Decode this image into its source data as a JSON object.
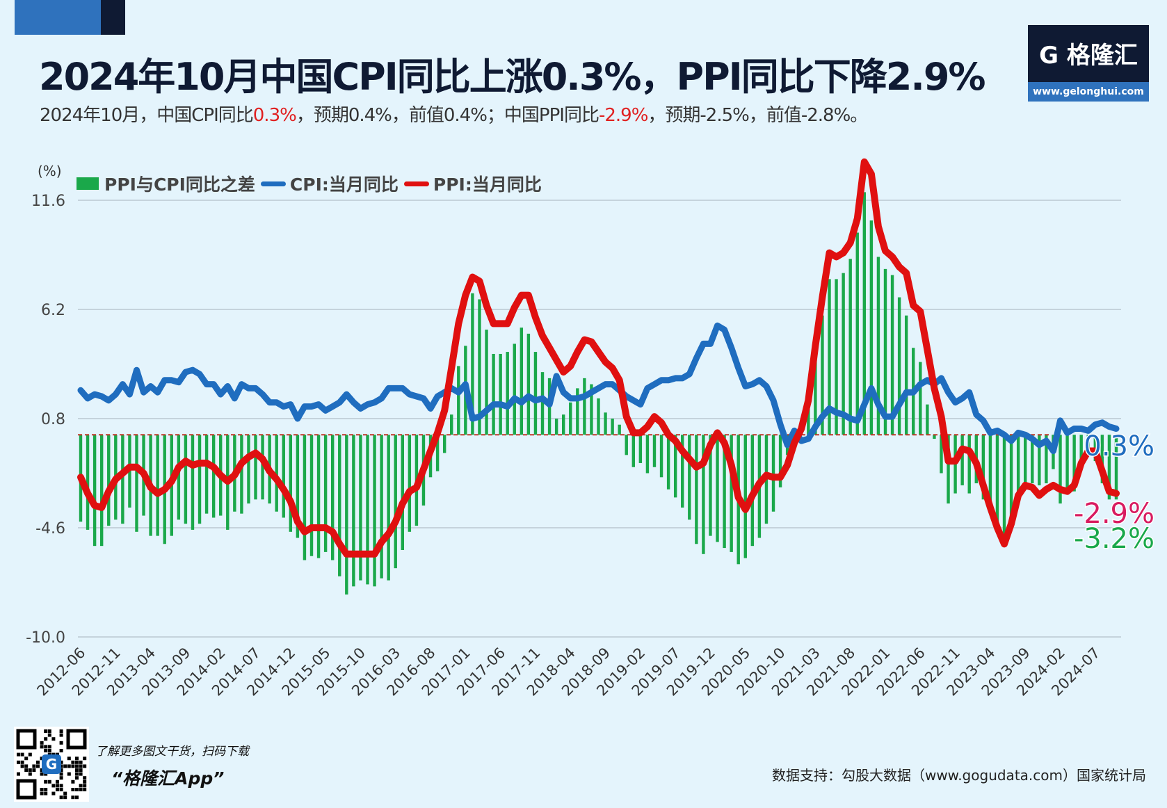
{
  "header": {
    "title": "2024年10月中国CPI同比上涨0.3%，PPI同比下降2.9%",
    "subtitle_parts": [
      "2024年10月，中国CPI同比",
      "0.3%",
      "，预期0.4%，前值0.4%；中国PPI同比",
      "-2.9%",
      "，预期-2.5%，前值-2.8%。"
    ]
  },
  "logo": {
    "brand": "格隆汇",
    "url": "www.gelonghui.com"
  },
  "footer": {
    "promo_line": "了解更多图文干货，扫码下载",
    "app_name": "“格隆汇App”",
    "source": "数据支持：勾股大数据（www.gogudata.com）国家统计局"
  },
  "colors": {
    "diff": "#1aa84a",
    "cpi": "#1f6dbf",
    "ppi": "#e01010",
    "ppi_label": "#d81b60",
    "background": "#e4f4fc"
  },
  "chart_data": {
    "type": "bar+line",
    "unit_label": "(%)",
    "ylim": [
      -10.0,
      11.6
    ],
    "yticks": [
      11.6,
      6.2,
      0.8,
      -4.6,
      -10.0
    ],
    "grid": true,
    "legend_position": "top-left",
    "start_month": "2012-06",
    "xtick_labels": [
      "2012-06",
      "2012-11",
      "2013-04",
      "2013-09",
      "2014-02",
      "2014-07",
      "2014-12",
      "2015-05",
      "2015-10",
      "2016-03",
      "2016-08",
      "2017-01",
      "2017-06",
      "2017-11",
      "2018-04",
      "2018-09",
      "2019-02",
      "2019-07",
      "2019-12",
      "2020-05",
      "2020-10",
      "2021-03",
      "2021-08",
      "2022-01",
      "2022-06",
      "2022-11",
      "2023-04",
      "2023-09",
      "2024-02",
      "2024-07"
    ],
    "series": [
      {
        "name": "PPI与CPI同比之差",
        "type": "bar",
        "derived": "PPI - CPI"
      },
      {
        "name": "CPI:当月同比",
        "type": "line",
        "values": [
          2.2,
          1.8,
          2.0,
          1.9,
          1.7,
          2.0,
          2.5,
          2.0,
          3.2,
          2.1,
          2.4,
          2.1,
          2.7,
          2.7,
          2.6,
          3.1,
          3.2,
          3.0,
          2.5,
          2.5,
          2.0,
          2.4,
          1.8,
          2.5,
          2.3,
          2.3,
          2.0,
          1.6,
          1.6,
          1.4,
          1.5,
          0.8,
          1.4,
          1.4,
          1.5,
          1.2,
          1.4,
          1.6,
          2.0,
          1.6,
          1.3,
          1.5,
          1.6,
          1.8,
          2.3,
          2.3,
          2.3,
          2.0,
          1.9,
          1.8,
          1.3,
          1.9,
          2.1,
          2.3,
          2.1,
          2.5,
          0.8,
          0.9,
          1.2,
          1.5,
          1.5,
          1.4,
          1.8,
          1.6,
          1.9,
          1.7,
          1.8,
          1.5,
          2.9,
          2.1,
          1.8,
          1.8,
          1.9,
          2.1,
          2.3,
          2.5,
          2.5,
          2.2,
          1.9,
          1.7,
          1.5,
          2.3,
          2.5,
          2.7,
          2.7,
          2.8,
          2.8,
          3.0,
          3.8,
          4.5,
          4.5,
          5.4,
          5.2,
          4.3,
          3.3,
          2.4,
          2.5,
          2.7,
          2.4,
          1.7,
          0.5,
          -0.5,
          0.2,
          -0.3,
          -0.2,
          0.4,
          0.9,
          1.3,
          1.1,
          1.0,
          0.8,
          0.7,
          1.5,
          2.3,
          1.5,
          0.9,
          0.9,
          1.5,
          2.1,
          2.1,
          2.5,
          2.7,
          2.5,
          2.8,
          2.1,
          1.6,
          1.8,
          2.1,
          1.0,
          0.7,
          0.1,
          0.2,
          0.0,
          -0.3,
          0.1,
          0.0,
          -0.2,
          -0.5,
          -0.3,
          -0.8,
          0.7,
          0.1,
          0.3,
          0.3,
          0.2,
          0.5,
          0.6,
          0.4,
          0.3
        ]
      },
      {
        "name": "PPI:当月同比",
        "type": "line",
        "values": [
          -2.1,
          -2.9,
          -3.5,
          -3.6,
          -2.8,
          -2.2,
          -1.9,
          -1.6,
          -1.6,
          -1.9,
          -2.6,
          -2.9,
          -2.7,
          -2.3,
          -1.6,
          -1.3,
          -1.5,
          -1.4,
          -1.4,
          -1.6,
          -2.0,
          -2.3,
          -2.0,
          -1.4,
          -1.1,
          -0.9,
          -1.2,
          -1.8,
          -2.2,
          -2.7,
          -3.3,
          -4.3,
          -4.8,
          -4.6,
          -4.6,
          -4.6,
          -4.8,
          -5.4,
          -5.9,
          -5.9,
          -5.9,
          -5.9,
          -5.9,
          -5.3,
          -4.9,
          -4.3,
          -3.4,
          -2.8,
          -2.6,
          -1.7,
          -0.8,
          0.1,
          1.2,
          3.3,
          5.5,
          6.9,
          7.8,
          7.6,
          6.4,
          5.5,
          5.5,
          5.5,
          6.3,
          6.9,
          6.9,
          5.8,
          4.9,
          4.3,
          3.7,
          3.1,
          3.4,
          4.1,
          4.7,
          4.6,
          4.1,
          3.6,
          3.3,
          2.7,
          0.9,
          0.1,
          0.1,
          0.4,
          0.9,
          0.6,
          0.0,
          -0.3,
          -0.8,
          -1.2,
          -1.6,
          -1.4,
          -0.5,
          0.1,
          -0.4,
          -1.5,
          -3.1,
          -3.7,
          -3.0,
          -2.4,
          -2.0,
          -2.1,
          -2.1,
          -1.5,
          -0.4,
          0.3,
          1.7,
          4.4,
          6.8,
          9.0,
          8.8,
          9.0,
          9.5,
          10.7,
          13.5,
          12.9,
          10.3,
          9.1,
          8.8,
          8.3,
          8.0,
          6.4,
          6.1,
          4.2,
          2.3,
          0.9,
          -1.3,
          -1.3,
          -0.7,
          -0.8,
          -1.4,
          -2.5,
          -3.6,
          -4.6,
          -5.4,
          -4.4,
          -3.0,
          -2.5,
          -2.6,
          -3.0,
          -2.7,
          -2.5,
          -2.7,
          -2.8,
          -2.5,
          -1.4,
          -0.8,
          -0.8,
          -1.8,
          -2.8,
          -2.9
        ]
      }
    ],
    "end_labels": {
      "cpi": "0.3%",
      "ppi": "-2.9%",
      "diff": "-3.2%"
    }
  }
}
